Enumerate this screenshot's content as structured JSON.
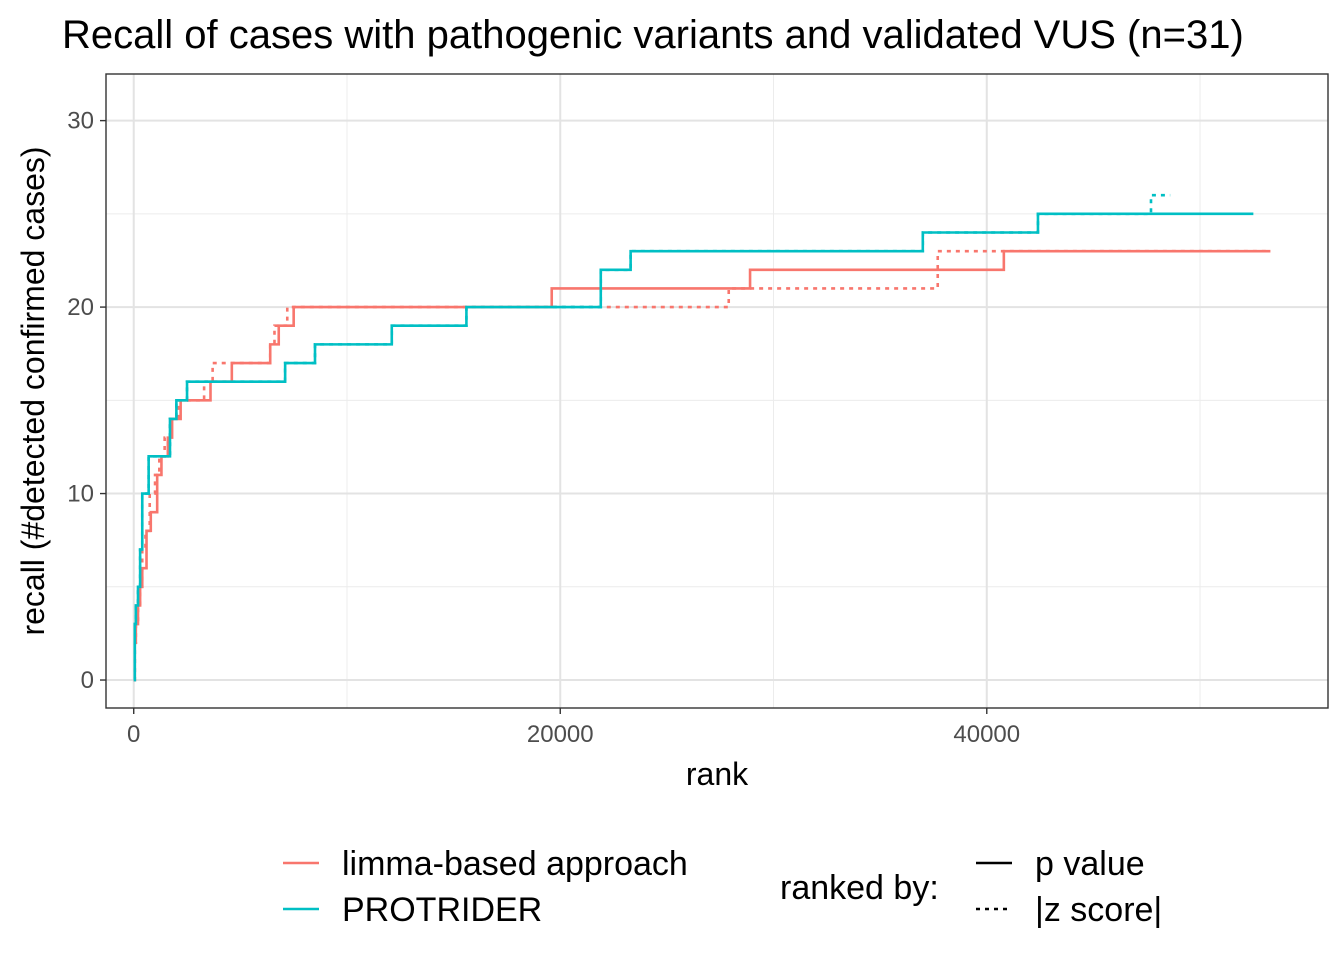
{
  "chart_data": {
    "type": "line",
    "title": "Recall of cases with pathogenic variants and validated VUS (n=31)",
    "xlabel": "rank",
    "ylabel": "recall (#detected confirmed cases)",
    "xlim": [
      -1300,
      56000
    ],
    "ylim": [
      -1.5,
      32.5
    ],
    "xticks": [
      0,
      20000,
      40000
    ],
    "xticks_minor": [
      10000,
      30000,
      50000
    ],
    "yticks": [
      0,
      10,
      20,
      30
    ],
    "yticks_minor": [
      5,
      15,
      25
    ],
    "grid": true,
    "legend_position": "bottom",
    "legend_title_linetype": "ranked by:",
    "series": [
      {
        "name": "limma-based approach",
        "color": "#F8766D",
        "ranked_by": "p value",
        "x": [
          0,
          50,
          100,
          200,
          300,
          400,
          600,
          800,
          1100,
          1300,
          1600,
          1800,
          2200,
          3600,
          4600,
          6400,
          6800,
          7500,
          19600,
          28900,
          40800,
          53300
        ],
        "y": [
          0,
          2,
          3,
          4,
          5,
          6,
          8,
          9,
          11,
          12,
          13,
          14,
          15,
          16,
          17,
          18,
          19,
          20,
          21,
          22,
          23,
          23
        ]
      },
      {
        "name": "limma-based approach",
        "color": "#F8766D",
        "ranked_by": "|z score|",
        "x": [
          0,
          50,
          100,
          200,
          300,
          400,
          550,
          750,
          1000,
          1200,
          1450,
          1700,
          2100,
          3300,
          3700,
          6400,
          6600,
          7200,
          7500,
          21600,
          27900,
          37700,
          53300
        ],
        "y": [
          0,
          2,
          3,
          4,
          5,
          7,
          8,
          10,
          11,
          12,
          13,
          14,
          15,
          16,
          17,
          18,
          19,
          20,
          20,
          20,
          21,
          23,
          23
        ]
      },
      {
        "name": "PROTRIDER",
        "color": "#00BFC4",
        "ranked_by": "p value",
        "x": [
          0,
          50,
          100,
          200,
          300,
          400,
          700,
          1700,
          2000,
          2500,
          7100,
          8500,
          12100,
          15600,
          21900,
          23300,
          37000,
          42400,
          52500
        ],
        "y": [
          0,
          3,
          4,
          5,
          7,
          10,
          12,
          14,
          15,
          16,
          17,
          18,
          19,
          20,
          22,
          23,
          24,
          25,
          25
        ]
      },
      {
        "name": "PROTRIDER",
        "color": "#00BFC4",
        "ranked_by": "|z score|",
        "x": [
          0,
          50,
          100,
          200,
          300,
          400,
          700,
          1700,
          2000,
          2500,
          7100,
          8500,
          12100,
          15600,
          21900,
          23300,
          37000,
          42400,
          47700,
          48600
        ],
        "y": [
          0,
          3,
          4,
          5,
          7,
          10,
          12,
          14,
          15,
          16,
          17,
          18,
          19,
          20,
          22,
          23,
          24,
          25,
          26,
          26
        ]
      }
    ],
    "legend_color": [
      {
        "label": "limma-based approach",
        "color": "#F8766D"
      },
      {
        "label": "PROTRIDER",
        "color": "#00BFC4"
      }
    ],
    "legend_linetype": [
      {
        "label": "p value",
        "dash": "solid"
      },
      {
        "label": "|z score|",
        "dash": "dotted"
      }
    ]
  }
}
